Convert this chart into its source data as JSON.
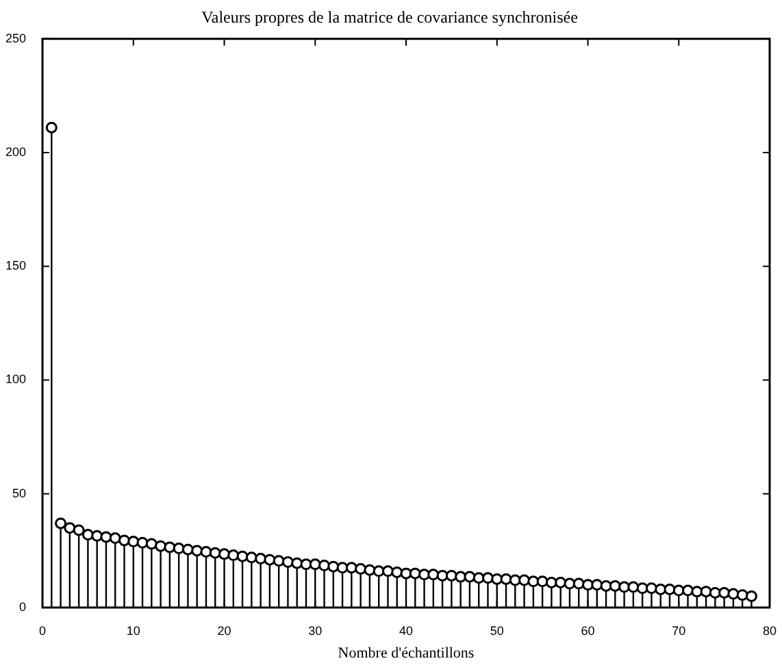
{
  "chart_data": {
    "type": "lollipop",
    "title": "Valeurs propres de la matrice de covariance synchronisée",
    "xlabel": "Nombre d'échantillons",
    "x": [
      1,
      2,
      3,
      4,
      5,
      6,
      7,
      8,
      9,
      10,
      11,
      12,
      13,
      14,
      15,
      16,
      17,
      18,
      19,
      20,
      21,
      22,
      23,
      24,
      25,
      26,
      27,
      28,
      29,
      30,
      31,
      32,
      33,
      34,
      35,
      36,
      37,
      38,
      39,
      40,
      41,
      42,
      43,
      44,
      45,
      46,
      47,
      48,
      49,
      50,
      51,
      52,
      53,
      54,
      55,
      56,
      57,
      58,
      59,
      60,
      61,
      62,
      63,
      64,
      65,
      66,
      67,
      68,
      69,
      70,
      71,
      72,
      73,
      74,
      75,
      76,
      77,
      78
    ],
    "values": [
      211,
      37,
      35,
      34,
      32,
      31.5,
      31,
      30.5,
      29.5,
      29,
      28.5,
      28,
      27,
      26.5,
      26,
      25.5,
      25,
      24.5,
      24,
      23.5,
      23,
      22.5,
      22,
      21.5,
      21,
      20.5,
      20,
      19.5,
      19,
      19,
      18.5,
      18,
      17.5,
      17.5,
      17,
      16.5,
      16,
      16,
      15.5,
      15,
      15,
      14.5,
      14.5,
      14,
      14,
      13.5,
      13.5,
      13,
      13,
      12.5,
      12.5,
      12,
      12,
      11.5,
      11.5,
      11,
      11,
      10.5,
      10.5,
      10,
      10,
      9.5,
      9.5,
      9,
      9,
      8.5,
      8.5,
      8,
      8,
      7.5,
      7.5,
      7,
      7,
      6.5,
      6.5,
      6,
      5.5,
      5
    ],
    "color": "#000000",
    "marker": "circle",
    "xlim": [
      0,
      80
    ],
    "xticks": [
      0,
      10,
      20,
      30,
      40,
      50,
      60,
      70,
      80
    ],
    "ylim": [
      0,
      250
    ],
    "yticks": [
      0,
      50,
      100,
      150,
      200,
      250
    ]
  }
}
